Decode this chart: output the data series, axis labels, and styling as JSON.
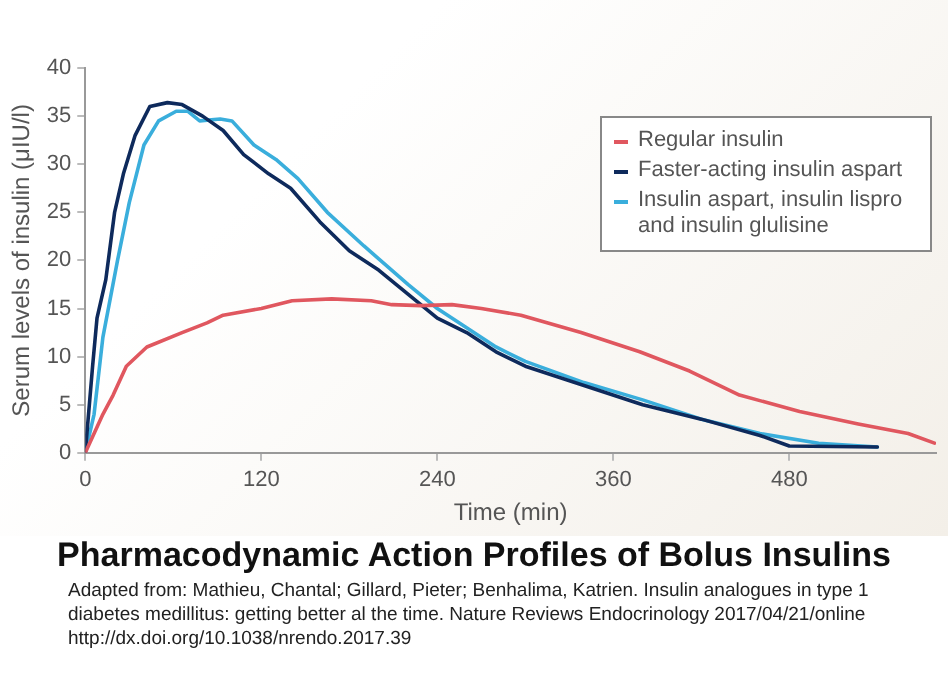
{
  "chart_data": {
    "type": "line",
    "title": "Pharmacodynamic Action Profiles of Bolus Insulins",
    "xlabel": "Time (min)",
    "ylabel": "Serum levels of insulin (μIU/l)",
    "annotations": [
      "Adapted from: Mathieu, Chantal; Gillard, Pieter; Benhalima, Katrien. Insulin analogues in type 1 diabetes medillitus: getting better al the time. Nature Reviews Endocrinology 2017/04/21/online http://dx.doi.org/10.1038/nrendo.2017.39"
    ],
    "xlim": [
      0,
      580
    ],
    "xticks": [
      0,
      120,
      240,
      360,
      480
    ],
    "ylim": [
      0,
      40
    ],
    "yticks": [
      0,
      5,
      10,
      15,
      20,
      25,
      30,
      35,
      40
    ],
    "grid": false,
    "legend": "top right",
    "marker": "none",
    "line_style": "solid",
    "series": [
      {
        "name": "Regular insulin",
        "color": "#e0575f",
        "x": [
          0,
          12,
          19,
          28,
          42,
          66,
          83,
          94,
          120,
          141,
          168,
          195,
          209,
          229,
          250,
          270,
          297,
          338,
          378,
          412,
          446,
          487,
          527,
          561,
          579
        ],
        "values": [
          0,
          4,
          6,
          9,
          11,
          12.5,
          13.5,
          14.3,
          15,
          15.8,
          16,
          15.8,
          15.4,
          15.3,
          15.4,
          15,
          14.3,
          12.5,
          10.5,
          8.5,
          6,
          4.3,
          3,
          2,
          1
        ]
      },
      {
        "name": "Faster-acting insulin aspart",
        "color": "#0e2a5c",
        "x": [
          0,
          5,
          8,
          14,
          20,
          26,
          34,
          44,
          56,
          66,
          80,
          94,
          108,
          125,
          140,
          160,
          180,
          200,
          220,
          240,
          260,
          280,
          300,
          340,
          380,
          420,
          460,
          480,
          540
        ],
        "values": [
          0,
          9,
          14,
          18,
          25,
          29,
          33,
          36,
          36.4,
          36.2,
          35,
          33.5,
          31,
          29,
          27.5,
          24,
          21,
          19,
          16.5,
          14,
          12.5,
          10.5,
          9,
          7,
          5,
          3.5,
          1.8,
          0.7,
          0.6
        ]
      },
      {
        "name": "Insulin aspart, insulin lispro and insulin glulisine",
        "color": "#3aaedc",
        "x": [
          0,
          6,
          12,
          22,
          30,
          40,
          50,
          62,
          70,
          78,
          92,
          100,
          115,
          130,
          145,
          165,
          190,
          220,
          240,
          260,
          280,
          300,
          340,
          380,
          420,
          460,
          500,
          540
        ],
        "values": [
          0,
          4,
          12,
          20,
          26,
          32,
          34.5,
          35.5,
          35.5,
          34.5,
          34.7,
          34.5,
          32,
          30.5,
          28.5,
          25,
          21.5,
          17.5,
          15,
          13,
          11,
          9.5,
          7.3,
          5.5,
          3.5,
          2,
          1,
          0.6
        ]
      }
    ]
  }
}
